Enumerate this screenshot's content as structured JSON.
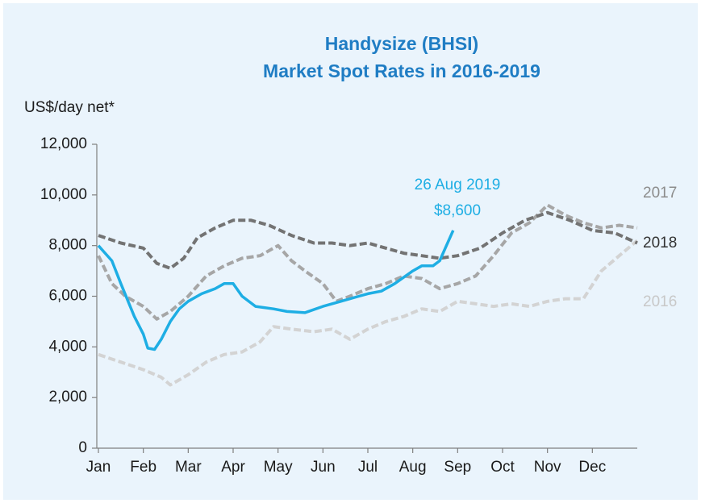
{
  "chart_data": {
    "type": "line",
    "title": "Handysize (BHSI)",
    "subtitle": "Market Spot Rates in 2016-2019",
    "y_axis_label": "US$/day net*",
    "annotations": [
      "26 Aug 2019",
      "$8,600"
    ],
    "xlim": [
      0,
      12
    ],
    "xticks": [
      {
        "value": 0,
        "label": "Jan"
      },
      {
        "value": 1,
        "label": "Feb"
      },
      {
        "value": 2,
        "label": "Mar"
      },
      {
        "value": 3,
        "label": "Apr"
      },
      {
        "value": 4,
        "label": "May"
      },
      {
        "value": 5,
        "label": "Jun"
      },
      {
        "value": 6,
        "label": "Jul"
      },
      {
        "value": 7,
        "label": "Aug"
      },
      {
        "value": 8,
        "label": "Sep"
      },
      {
        "value": 9,
        "label": "Oct"
      },
      {
        "value": 10,
        "label": "Nov"
      },
      {
        "value": 11,
        "label": "Dec"
      }
    ],
    "ylim": [
      0,
      12000
    ],
    "yticks": [
      0,
      {
        "value": 2000,
        "label": "2,000"
      },
      {
        "value": 4000,
        "label": "4,000"
      },
      {
        "value": 6000,
        "label": "6,000"
      },
      {
        "value": 8000,
        "label": "8,000"
      },
      {
        "value": 10000,
        "label": "10,000"
      },
      {
        "value": 12000,
        "label": "12,000"
      }
    ],
    "series": [
      {
        "name": "2016",
        "color": "#d3d3d3",
        "dashed": true,
        "x": [
          0,
          0.5,
          1.0,
          1.4,
          1.6,
          2.0,
          2.4,
          2.8,
          3.2,
          3.6,
          3.9,
          4.3,
          4.8,
          5.2,
          5.6,
          6.0,
          6.4,
          6.8,
          7.2,
          7.6,
          8.0,
          8.4,
          8.8,
          9.2,
          9.6,
          10.0,
          10.4,
          10.8,
          11.2,
          11.6,
          12.0
        ],
        "values": [
          3700,
          3400,
          3100,
          2800,
          2500,
          2900,
          3400,
          3700,
          3800,
          4200,
          4800,
          4700,
          4600,
          4700,
          4300,
          4700,
          5000,
          5200,
          5500,
          5400,
          5800,
          5700,
          5600,
          5700,
          5600,
          5800,
          5900,
          5900,
          7000,
          7600,
          8200
        ]
      },
      {
        "name": "2017",
        "color": "#a6a6a6",
        "dashed": true,
        "x": [
          0,
          0.3,
          0.6,
          1.0,
          1.3,
          1.6,
          2.0,
          2.4,
          2.8,
          3.2,
          3.6,
          4.0,
          4.3,
          4.6,
          5.0,
          5.3,
          5.6,
          6.0,
          6.4,
          6.8,
          7.2,
          7.6,
          8.0,
          8.4,
          8.8,
          9.2,
          9.6,
          10.0,
          10.4,
          10.8,
          11.2,
          11.6,
          12.0
        ],
        "values": [
          7600,
          6500,
          6000,
          5600,
          5100,
          5400,
          6000,
          6800,
          7200,
          7500,
          7600,
          8000,
          7400,
          7000,
          6500,
          5800,
          6000,
          6300,
          6500,
          6800,
          6700,
          6300,
          6500,
          6800,
          7600,
          8500,
          8900,
          9600,
          9200,
          8900,
          8700,
          8800,
          8700
        ]
      },
      {
        "name": "2018",
        "color": "#737373",
        "dashed": true,
        "x": [
          0,
          0.5,
          1.0,
          1.3,
          1.6,
          1.9,
          2.2,
          2.6,
          3.0,
          3.4,
          3.8,
          4.3,
          4.8,
          5.2,
          5.6,
          6.0,
          6.4,
          6.8,
          7.2,
          7.6,
          8.0,
          8.5,
          9.0,
          9.5,
          10.0,
          10.5,
          11.0,
          11.5,
          12.0
        ],
        "values": [
          8400,
          8100,
          7900,
          7300,
          7100,
          7500,
          8300,
          8700,
          9000,
          9000,
          8800,
          8400,
          8100,
          8100,
          8000,
          8100,
          7900,
          7700,
          7600,
          7500,
          7600,
          7900,
          8500,
          9000,
          9300,
          9000,
          8600,
          8500,
          8100
        ]
      },
      {
        "name": "2019",
        "color": "#1eaee4",
        "dashed": false,
        "x": [
          0,
          0.3,
          0.5,
          0.8,
          1.0,
          1.1,
          1.25,
          1.4,
          1.6,
          1.8,
          2.0,
          2.3,
          2.6,
          2.8,
          3.0,
          3.2,
          3.5,
          3.9,
          4.2,
          4.6,
          5.0,
          5.4,
          5.8,
          6.0,
          6.3,
          6.6,
          7.0,
          7.2,
          7.45,
          7.6,
          7.75,
          7.9
        ],
        "values": [
          8000,
          7400,
          6500,
          5200,
          4500,
          3950,
          3900,
          4300,
          5000,
          5500,
          5800,
          6100,
          6300,
          6500,
          6500,
          6000,
          5600,
          5500,
          5400,
          5350,
          5600,
          5800,
          6000,
          6100,
          6200,
          6500,
          7000,
          7200,
          7200,
          7400,
          8000,
          8600
        ]
      }
    ]
  }
}
